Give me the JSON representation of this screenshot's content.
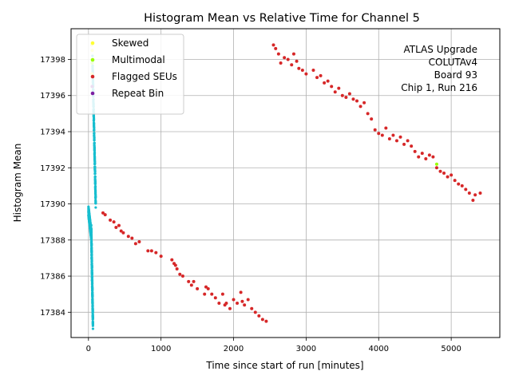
{
  "chart_data": {
    "type": "scatter",
    "title": "Histogram Mean vs Relative Time for Channel 5",
    "xlabel": "Time since start of run [minutes]",
    "ylabel": "Histogram Mean",
    "xlim": [
      -240,
      5670
    ],
    "ylim": [
      17382.6,
      17399.7
    ],
    "xticks": [
      0,
      1000,
      2000,
      3000,
      4000,
      5000
    ],
    "yticks": [
      17384,
      17386,
      17388,
      17390,
      17392,
      17394,
      17396,
      17398
    ],
    "grid": true,
    "legend_position": "top-left",
    "annotation": [
      "ATLAS Upgrade",
      "COLUTAv4",
      "Board 93",
      "Chip 1, Run 216"
    ],
    "series": [
      {
        "name": "Skewed",
        "color": "#ffff33",
        "points": [
          [
            45,
            17398.8
          ],
          [
            52,
            17398.5
          ],
          [
            60,
            17398.0
          ],
          [
            48,
            17397.2
          ]
        ]
      },
      {
        "name": "Multimodal",
        "color": "#99ff00",
        "points": [
          [
            50,
            17397.8
          ],
          [
            4800,
            17392.2
          ]
        ]
      },
      {
        "name": "Flagged SEUs",
        "color": "#d62728",
        "points": [
          [
            200,
            17389.5
          ],
          [
            230,
            17389.4
          ],
          [
            300,
            17389.1
          ],
          [
            350,
            17389.0
          ],
          [
            380,
            17388.7
          ],
          [
            420,
            17388.8
          ],
          [
            450,
            17388.5
          ],
          [
            480,
            17388.4
          ],
          [
            550,
            17388.2
          ],
          [
            600,
            17388.1
          ],
          [
            650,
            17387.8
          ],
          [
            700,
            17387.9
          ],
          [
            820,
            17387.4
          ],
          [
            870,
            17387.4
          ],
          [
            930,
            17387.3
          ],
          [
            1000,
            17387.1
          ],
          [
            1150,
            17386.9
          ],
          [
            1180,
            17386.7
          ],
          [
            1200,
            17386.6
          ],
          [
            1220,
            17386.4
          ],
          [
            1260,
            17386.1
          ],
          [
            1300,
            17386.0
          ],
          [
            1380,
            17385.7
          ],
          [
            1420,
            17385.5
          ],
          [
            1450,
            17385.7
          ],
          [
            1500,
            17385.3
          ],
          [
            1600,
            17385.0
          ],
          [
            1620,
            17385.4
          ],
          [
            1650,
            17385.3
          ],
          [
            1700,
            17385.0
          ],
          [
            1750,
            17384.8
          ],
          [
            1800,
            17384.5
          ],
          [
            1850,
            17385.0
          ],
          [
            1880,
            17384.4
          ],
          [
            1900,
            17384.5
          ],
          [
            1950,
            17384.2
          ],
          [
            2000,
            17384.7
          ],
          [
            2050,
            17384.5
          ],
          [
            2100,
            17385.1
          ],
          [
            2120,
            17384.6
          ],
          [
            2150,
            17384.4
          ],
          [
            2200,
            17384.7
          ],
          [
            2250,
            17384.2
          ],
          [
            2300,
            17384.0
          ],
          [
            2350,
            17383.8
          ],
          [
            2400,
            17383.6
          ],
          [
            2450,
            17383.5
          ],
          [
            2550,
            17398.8
          ],
          [
            2580,
            17398.6
          ],
          [
            2620,
            17398.3
          ],
          [
            2650,
            17397.8
          ],
          [
            2700,
            17398.1
          ],
          [
            2750,
            17398.0
          ],
          [
            2800,
            17397.7
          ],
          [
            2830,
            17398.3
          ],
          [
            2870,
            17397.9
          ],
          [
            2900,
            17397.5
          ],
          [
            2950,
            17397.4
          ],
          [
            3000,
            17397.2
          ],
          [
            3100,
            17397.4
          ],
          [
            3150,
            17397.0
          ],
          [
            3200,
            17397.1
          ],
          [
            3250,
            17396.7
          ],
          [
            3300,
            17396.8
          ],
          [
            3350,
            17396.5
          ],
          [
            3400,
            17396.2
          ],
          [
            3450,
            17396.4
          ],
          [
            3500,
            17396.0
          ],
          [
            3550,
            17395.9
          ],
          [
            3600,
            17396.1
          ],
          [
            3650,
            17395.8
          ],
          [
            3700,
            17395.7
          ],
          [
            3750,
            17395.4
          ],
          [
            3800,
            17395.6
          ],
          [
            3850,
            17395.0
          ],
          [
            3900,
            17394.7
          ],
          [
            3950,
            17394.1
          ],
          [
            4000,
            17393.9
          ],
          [
            4050,
            17393.8
          ],
          [
            4100,
            17394.2
          ],
          [
            4150,
            17393.6
          ],
          [
            4200,
            17393.8
          ],
          [
            4250,
            17393.5
          ],
          [
            4300,
            17393.7
          ],
          [
            4350,
            17393.3
          ],
          [
            4400,
            17393.5
          ],
          [
            4450,
            17393.2
          ],
          [
            4500,
            17392.9
          ],
          [
            4550,
            17392.6
          ],
          [
            4600,
            17392.8
          ],
          [
            4650,
            17392.5
          ],
          [
            4700,
            17392.7
          ],
          [
            4750,
            17392.6
          ],
          [
            4800,
            17392.0
          ],
          [
            4850,
            17391.8
          ],
          [
            4900,
            17391.7
          ],
          [
            4950,
            17391.5
          ],
          [
            5000,
            17391.6
          ],
          [
            5050,
            17391.3
          ],
          [
            5100,
            17391.1
          ],
          [
            5150,
            17391.0
          ],
          [
            5200,
            17390.8
          ],
          [
            5250,
            17390.6
          ],
          [
            5300,
            17390.2
          ],
          [
            5330,
            17390.5
          ],
          [
            5400,
            17390.6
          ]
        ]
      },
      {
        "name": "Repeat Bin",
        "color": "#7b1fa2",
        "points": [
          [
            50,
            17396.5
          ]
        ]
      },
      {
        "name": "",
        "color": "#17becf",
        "segments": [
          {
            "x": [
              0,
              38
            ],
            "y_start": 17389.6,
            "y_end": 17388.3
          },
          {
            "x": [
              38,
              62
            ],
            "y_start": 17388.6,
            "y_end": 17383.3
          },
          {
            "x": [
              55,
              100
            ],
            "y_start": 17398.0,
            "y_end": 17390.0
          }
        ]
      }
    ]
  }
}
